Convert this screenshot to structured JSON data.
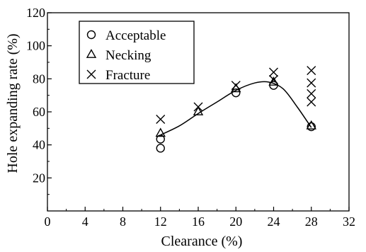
{
  "chart_data": {
    "type": "scatter",
    "title": "",
    "xlabel": "Clearance (%)",
    "ylabel": "Hole expanding rate (%)",
    "xlim": [
      0,
      32
    ],
    "ylim": [
      0,
      120
    ],
    "xticks": [
      0,
      4,
      8,
      12,
      16,
      20,
      24,
      28,
      32
    ],
    "yticks": [
      20,
      40,
      60,
      80,
      100,
      120
    ],
    "grid": false,
    "legend_position": "top-left",
    "series": [
      {
        "name": "Acceptable",
        "marker": "circle",
        "points": [
          [
            12,
            38
          ],
          [
            12,
            43.5
          ],
          [
            20,
            71.5
          ],
          [
            24,
            76
          ],
          [
            28,
            51
          ]
        ]
      },
      {
        "name": "Necking",
        "marker": "triangle",
        "points": [
          [
            12,
            47
          ],
          [
            16,
            60
          ],
          [
            20,
            74
          ],
          [
            24,
            78
          ],
          [
            28,
            51.5
          ]
        ]
      },
      {
        "name": "Fracture",
        "marker": "cross",
        "points": [
          [
            12,
            55.5
          ],
          [
            16,
            63
          ],
          [
            20,
            76
          ],
          [
            24,
            79.5
          ],
          [
            24,
            84
          ],
          [
            28,
            66
          ],
          [
            28,
            71
          ],
          [
            28,
            77.5
          ],
          [
            28,
            85
          ]
        ]
      }
    ],
    "trend_line": {
      "points": [
        [
          12,
          46
        ],
        [
          14,
          51.5
        ],
        [
          16,
          59
        ],
        [
          18,
          66
        ],
        [
          20,
          73
        ],
        [
          22,
          77.5
        ],
        [
          23.5,
          78
        ],
        [
          25,
          74
        ],
        [
          26.5,
          63
        ],
        [
          28,
          50.5
        ]
      ]
    }
  }
}
